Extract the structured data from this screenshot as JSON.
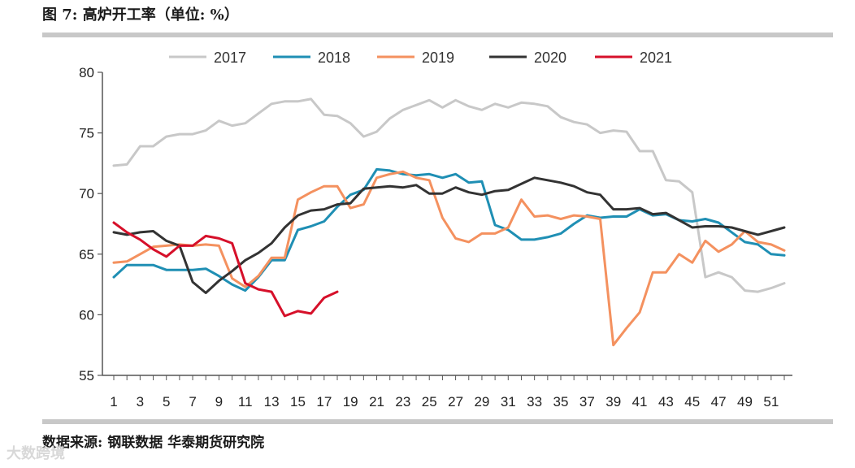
{
  "figure": {
    "title": "图 7: 高炉开工率（单位: %）",
    "source": "数据来源: 钢联数据 华泰期货研究院",
    "watermark": "大数跨境"
  },
  "chart_data": {
    "type": "line",
    "title": "高炉开工率（单位: %）",
    "xlabel": "",
    "ylabel": "",
    "ylim": [
      55,
      80
    ],
    "yticks": [
      55,
      60,
      65,
      70,
      75,
      80
    ],
    "xlim": [
      1,
      52
    ],
    "xticks": [
      1,
      3,
      5,
      7,
      9,
      11,
      13,
      15,
      17,
      19,
      21,
      23,
      25,
      27,
      29,
      31,
      33,
      35,
      37,
      39,
      41,
      43,
      45,
      47,
      49,
      51
    ],
    "grid": false,
    "legend_position": "top",
    "series": [
      {
        "name": "2017",
        "color": "#c8c8c8",
        "x": [
          1,
          2,
          3,
          4,
          5,
          6,
          7,
          8,
          9,
          10,
          11,
          12,
          13,
          14,
          15,
          16,
          17,
          18,
          19,
          20,
          21,
          22,
          23,
          24,
          25,
          26,
          27,
          28,
          29,
          30,
          31,
          32,
          33,
          34,
          35,
          36,
          37,
          38,
          39,
          40,
          41,
          42,
          43,
          44,
          45,
          46,
          47,
          48,
          49,
          50,
          51,
          52
        ],
        "values": [
          72.3,
          72.4,
          73.9,
          73.9,
          74.7,
          74.9,
          74.9,
          75.2,
          76.0,
          75.6,
          75.8,
          76.6,
          77.4,
          77.6,
          77.6,
          77.8,
          76.5,
          76.4,
          75.8,
          74.7,
          75.1,
          76.2,
          76.9,
          77.3,
          77.7,
          77.1,
          77.7,
          77.2,
          76.9,
          77.4,
          77.1,
          77.5,
          77.4,
          77.2,
          76.3,
          75.9,
          75.7,
          75.0,
          75.2,
          75.1,
          73.5,
          73.5,
          71.1,
          71.0,
          70.1,
          63.1,
          63.5,
          63.1,
          62.0,
          61.9,
          62.2,
          62.6
        ]
      },
      {
        "name": "2018",
        "color": "#1f8fb4",
        "x": [
          1,
          2,
          3,
          4,
          5,
          6,
          7,
          8,
          9,
          10,
          11,
          12,
          13,
          14,
          15,
          16,
          17,
          18,
          19,
          20,
          21,
          22,
          23,
          24,
          25,
          26,
          27,
          28,
          29,
          30,
          31,
          32,
          33,
          34,
          35,
          36,
          37,
          38,
          39,
          40,
          41,
          42,
          43,
          44,
          45,
          46,
          47,
          48,
          49,
          50,
          51,
          52
        ],
        "values": [
          63.1,
          64.1,
          64.1,
          64.1,
          63.7,
          63.7,
          63.7,
          63.8,
          63.2,
          62.5,
          62.0,
          63.1,
          64.5,
          64.5,
          67.0,
          67.3,
          67.7,
          68.9,
          69.9,
          70.3,
          72.0,
          71.9,
          71.6,
          71.5,
          71.6,
          71.3,
          71.6,
          70.9,
          71.0,
          67.4,
          67.0,
          66.2,
          66.2,
          66.4,
          66.7,
          67.5,
          68.2,
          68.0,
          68.1,
          68.1,
          68.7,
          68.2,
          68.3,
          67.8,
          67.7,
          67.9,
          67.6,
          66.8,
          66.0,
          65.8,
          65.0,
          64.9
        ]
      },
      {
        "name": "2019",
        "color": "#f4915f",
        "x": [
          1,
          2,
          3,
          4,
          5,
          6,
          7,
          8,
          9,
          10,
          11,
          12,
          13,
          14,
          15,
          16,
          17,
          18,
          19,
          20,
          21,
          22,
          23,
          24,
          25,
          26,
          27,
          28,
          29,
          30,
          31,
          32,
          33,
          34,
          35,
          36,
          37,
          38,
          39,
          40,
          41,
          42,
          43,
          44,
          45,
          46,
          47,
          48,
          49,
          50,
          51,
          52
        ],
        "values": [
          64.3,
          64.4,
          65.0,
          65.6,
          65.7,
          65.8,
          65.7,
          65.8,
          65.7,
          63.0,
          62.3,
          63.2,
          64.7,
          64.7,
          69.5,
          70.1,
          70.6,
          70.6,
          68.8,
          69.1,
          71.3,
          71.6,
          71.8,
          71.3,
          71.1,
          68.0,
          66.3,
          66.0,
          66.7,
          66.7,
          67.2,
          69.5,
          68.1,
          68.2,
          67.9,
          68.2,
          68.1,
          67.9,
          57.5,
          58.9,
          60.2,
          63.5,
          63.5,
          65.0,
          64.3,
          66.1,
          65.2,
          65.8,
          66.9,
          66.0,
          65.8,
          65.3
        ]
      },
      {
        "name": "2020",
        "color": "#333333",
        "x": [
          1,
          2,
          3,
          4,
          5,
          6,
          7,
          8,
          9,
          10,
          11,
          12,
          13,
          14,
          15,
          16,
          17,
          18,
          19,
          20,
          21,
          22,
          23,
          24,
          25,
          26,
          27,
          28,
          29,
          30,
          31,
          32,
          33,
          34,
          35,
          36,
          37,
          38,
          39,
          40,
          41,
          42,
          43,
          44,
          45,
          46,
          47,
          48,
          49,
          50,
          51,
          52
        ],
        "values": [
          66.8,
          66.6,
          66.8,
          66.9,
          66.1,
          65.7,
          62.7,
          61.8,
          62.8,
          63.6,
          64.5,
          65.1,
          65.9,
          67.2,
          68.2,
          68.6,
          68.7,
          69.1,
          69.2,
          70.4,
          70.5,
          70.6,
          70.5,
          70.7,
          70.0,
          70.0,
          70.5,
          70.1,
          69.9,
          70.2,
          70.3,
          70.8,
          71.3,
          71.1,
          70.9,
          70.6,
          70.1,
          69.9,
          68.7,
          68.7,
          68.8,
          68.3,
          68.4,
          67.8,
          67.2,
          67.3,
          67.3,
          67.2,
          66.9,
          66.6,
          66.9,
          67.2
        ]
      },
      {
        "name": "2021",
        "color": "#d6102a",
        "x": [
          1,
          2,
          3,
          4,
          5,
          6,
          7,
          8,
          9,
          10,
          11,
          12,
          13,
          14,
          15,
          16,
          17,
          18
        ],
        "values": [
          67.6,
          66.8,
          66.2,
          65.4,
          64.8,
          65.7,
          65.7,
          66.5,
          66.3,
          65.9,
          62.6,
          62.1,
          61.9,
          59.9,
          60.3,
          60.1,
          61.4,
          61.9
        ]
      }
    ]
  }
}
